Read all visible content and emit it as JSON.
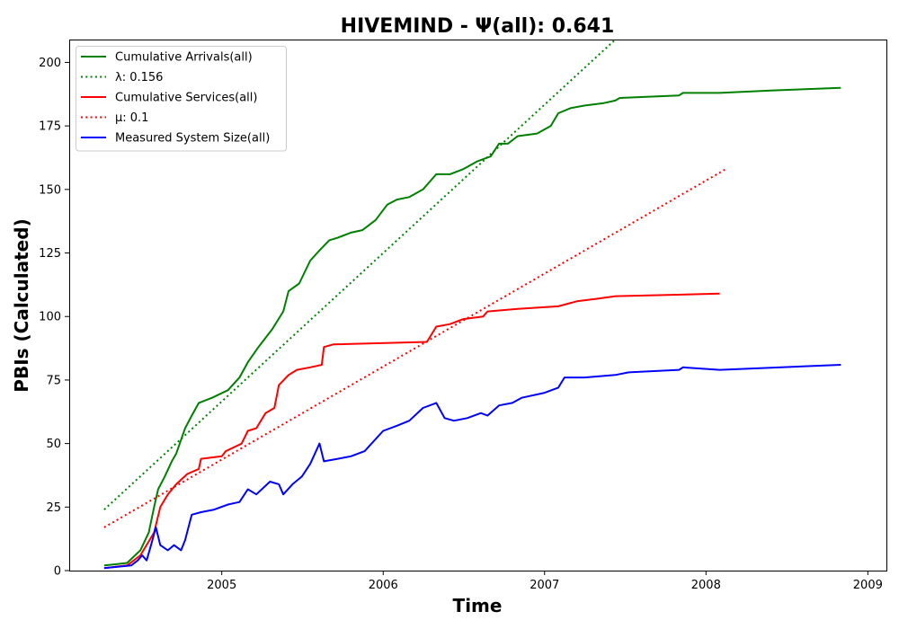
{
  "chart_data": {
    "type": "line",
    "title": "HIVEMIND -  Ψ(all): 0.641",
    "xlabel": "Time",
    "ylabel": "PBIs (Calculated)",
    "xlim": [
      "2004-01-22",
      "2009-02-12"
    ],
    "ylim": [
      0,
      209
    ],
    "x_ticks": [
      {
        "value": "2005-01-01",
        "label": "2005"
      },
      {
        "value": "2006-01-01",
        "label": "2006"
      },
      {
        "value": "2007-01-01",
        "label": "2007"
      },
      {
        "value": "2008-01-01",
        "label": "2008"
      },
      {
        "value": "2009-01-01",
        "label": "2009"
      }
    ],
    "y_ticks": [
      0,
      25,
      50,
      75,
      100,
      125,
      150,
      175,
      200
    ],
    "grid": false,
    "legend_position": "upper-left",
    "series": [
      {
        "name": "Cumulative Arrivals(all)",
        "color": "#008000",
        "style": "solid",
        "points": [
          [
            "2004-04-10",
            2
          ],
          [
            "2004-06-01",
            3
          ],
          [
            "2004-07-01",
            8
          ],
          [
            "2004-07-20",
            15
          ],
          [
            "2004-08-01",
            25
          ],
          [
            "2004-08-10",
            32
          ],
          [
            "2004-08-25",
            37
          ],
          [
            "2004-09-10",
            43
          ],
          [
            "2004-09-20",
            46
          ],
          [
            "2004-10-10",
            56
          ],
          [
            "2004-10-25",
            61
          ],
          [
            "2004-11-10",
            66
          ],
          [
            "2004-12-10",
            68
          ],
          [
            "2005-01-15",
            71
          ],
          [
            "2005-02-10",
            76
          ],
          [
            "2005-03-01",
            82
          ],
          [
            "2005-03-25",
            88
          ],
          [
            "2005-04-25",
            95
          ],
          [
            "2005-05-20",
            102
          ],
          [
            "2005-06-01",
            110
          ],
          [
            "2005-06-25",
            113
          ],
          [
            "2005-07-20",
            122
          ],
          [
            "2005-08-10",
            126
          ],
          [
            "2005-09-01",
            130
          ],
          [
            "2005-09-20",
            131
          ],
          [
            "2005-10-20",
            133
          ],
          [
            "2005-11-15",
            134
          ],
          [
            "2005-12-15",
            138
          ],
          [
            "2006-01-10",
            144
          ],
          [
            "2006-02-01",
            146
          ],
          [
            "2006-03-01",
            147
          ],
          [
            "2006-04-01",
            150
          ],
          [
            "2006-05-01",
            156
          ],
          [
            "2006-06-01",
            156
          ],
          [
            "2006-07-01",
            158
          ],
          [
            "2006-08-01",
            161
          ],
          [
            "2006-09-01",
            163
          ],
          [
            "2006-09-20",
            168
          ],
          [
            "2006-10-10",
            168
          ],
          [
            "2006-11-01",
            171
          ],
          [
            "2006-12-15",
            172
          ],
          [
            "2007-01-15",
            175
          ],
          [
            "2007-02-01",
            180
          ],
          [
            "2007-03-01",
            182
          ],
          [
            "2007-04-01",
            183
          ],
          [
            "2007-05-15",
            184
          ],
          [
            "2007-06-10",
            185
          ],
          [
            "2007-06-20",
            186
          ],
          [
            "2007-11-01",
            187
          ],
          [
            "2007-11-10",
            188
          ],
          [
            "2008-02-01",
            188
          ],
          [
            "2008-06-01",
            189
          ],
          [
            "2008-11-01",
            190
          ]
        ]
      },
      {
        "name": "λ: 0.156",
        "color": "#008000",
        "style": "dotted",
        "points": [
          [
            "2004-04-10",
            24
          ],
          [
            "2007-06-10",
            209
          ]
        ]
      },
      {
        "name": "Cumulative Services(all)",
        "color": "#ff0000",
        "style": "solid",
        "points": [
          [
            "2004-04-10",
            1
          ],
          [
            "2004-06-01",
            2
          ],
          [
            "2004-07-01",
            6
          ],
          [
            "2004-08-01",
            15
          ],
          [
            "2004-08-15",
            25
          ],
          [
            "2004-09-01",
            30
          ],
          [
            "2004-09-20",
            34
          ],
          [
            "2004-10-15",
            38
          ],
          [
            "2004-11-10",
            40
          ],
          [
            "2004-11-15",
            44
          ],
          [
            "2005-01-01",
            45
          ],
          [
            "2005-01-10",
            47
          ],
          [
            "2005-02-15",
            50
          ],
          [
            "2005-03-01",
            55
          ],
          [
            "2005-03-20",
            56
          ],
          [
            "2005-04-10",
            62
          ],
          [
            "2005-04-30",
            64
          ],
          [
            "2005-05-10",
            73
          ],
          [
            "2005-06-01",
            77
          ],
          [
            "2005-06-20",
            79
          ],
          [
            "2005-07-20",
            80
          ],
          [
            "2005-08-15",
            81
          ],
          [
            "2005-08-20",
            88
          ],
          [
            "2005-09-10",
            89
          ],
          [
            "2006-04-10",
            90
          ],
          [
            "2006-05-01",
            96
          ],
          [
            "2006-06-01",
            97
          ],
          [
            "2006-07-01",
            99
          ],
          [
            "2006-08-15",
            100
          ],
          [
            "2006-08-25",
            102
          ],
          [
            "2006-11-01",
            103
          ],
          [
            "2007-02-01",
            104
          ],
          [
            "2007-03-15",
            106
          ],
          [
            "2007-05-01",
            107
          ],
          [
            "2007-06-10",
            108
          ],
          [
            "2008-02-01",
            109
          ]
        ]
      },
      {
        "name": "μ: 0.1",
        "color": "#ff0000",
        "style": "dotted",
        "points": [
          [
            "2004-04-10",
            17
          ],
          [
            "2008-02-15",
            158
          ]
        ]
      },
      {
        "name": "Measured System Size(all)",
        "color": "#0000ff",
        "style": "solid",
        "points": [
          [
            "2004-04-10",
            1
          ],
          [
            "2004-06-10",
            2
          ],
          [
            "2004-06-25",
            4
          ],
          [
            "2004-07-05",
            6
          ],
          [
            "2004-07-15",
            4
          ],
          [
            "2004-07-25",
            10
          ],
          [
            "2004-08-05",
            17
          ],
          [
            "2004-08-15",
            10
          ],
          [
            "2004-09-01",
            8
          ],
          [
            "2004-09-15",
            10
          ],
          [
            "2004-10-01",
            8
          ],
          [
            "2004-10-10",
            12
          ],
          [
            "2004-10-25",
            22
          ],
          [
            "2004-11-15",
            23
          ],
          [
            "2004-12-15",
            24
          ],
          [
            "2005-01-15",
            26
          ],
          [
            "2005-02-10",
            27
          ],
          [
            "2005-03-01",
            32
          ],
          [
            "2005-03-20",
            30
          ],
          [
            "2005-04-20",
            35
          ],
          [
            "2005-05-10",
            34
          ],
          [
            "2005-05-20",
            30
          ],
          [
            "2005-06-10",
            34
          ],
          [
            "2005-07-01",
            37
          ],
          [
            "2005-07-20",
            42
          ],
          [
            "2005-08-10",
            50
          ],
          [
            "2005-08-20",
            43
          ],
          [
            "2005-09-20",
            44
          ],
          [
            "2005-10-20",
            45
          ],
          [
            "2005-11-20",
            47
          ],
          [
            "2006-01-01",
            55
          ],
          [
            "2006-02-01",
            57
          ],
          [
            "2006-03-01",
            59
          ],
          [
            "2006-04-01",
            64
          ],
          [
            "2006-05-01",
            66
          ],
          [
            "2006-05-20",
            60
          ],
          [
            "2006-06-10",
            59
          ],
          [
            "2006-07-10",
            60
          ],
          [
            "2006-08-10",
            62
          ],
          [
            "2006-08-25",
            61
          ],
          [
            "2006-09-20",
            65
          ],
          [
            "2006-10-20",
            66
          ],
          [
            "2006-11-10",
            68
          ],
          [
            "2007-01-01",
            70
          ],
          [
            "2007-02-01",
            72
          ],
          [
            "2007-02-15",
            76
          ],
          [
            "2007-04-01",
            76
          ],
          [
            "2007-06-10",
            77
          ],
          [
            "2007-07-10",
            78
          ],
          [
            "2007-11-01",
            79
          ],
          [
            "2007-11-10",
            80
          ],
          [
            "2008-02-01",
            79
          ],
          [
            "2008-11-01",
            81
          ]
        ]
      }
    ]
  }
}
